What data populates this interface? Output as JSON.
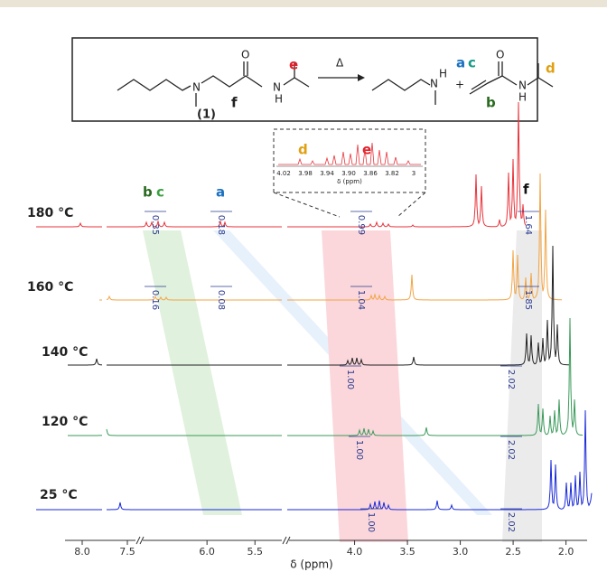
{
  "scheme": {
    "texts": [
      "e",
      "N",
      "N",
      "H",
      "O",
      "f",
      "(1)",
      "Δ",
      "N",
      "H",
      "+",
      "a",
      "c",
      "O",
      "N",
      "H",
      "d",
      "b"
    ]
  },
  "inset": {
    "labels": [
      "d",
      "e"
    ],
    "ticks": [
      "4.02",
      "3.98",
      "3.94",
      "3.90",
      "3.86",
      "3.82",
      "3"
    ],
    "axis_label": "δ (ppm)"
  },
  "peak_labels": [
    "b",
    "c",
    "a",
    "f"
  ],
  "spectra": [
    {
      "temperature": "180 °C",
      "integrals": [
        "0.35",
        "0.18",
        "0.99",
        "1.64"
      ]
    },
    {
      "temperature": "160 °C",
      "integrals": [
        "0.16",
        "0.08",
        "1.04",
        "1.85"
      ]
    },
    {
      "temperature": "140 °C",
      "integrals": [
        "1.00",
        "2.02"
      ]
    },
    {
      "temperature": "120 °C",
      "integrals": [
        "1.00",
        "2.02"
      ]
    },
    {
      "temperature": "25 °C",
      "integrals": [
        "1.00",
        "2.02"
      ]
    }
  ],
  "axis": {
    "label": "δ (ppm)",
    "segments": [
      {
        "xlim": [
          8.19,
          7.41
        ],
        "ticks": [
          {
            "value": 8,
            "label": "8.0"
          },
          7.5
        ]
      },
      {
        "xlim": [
          6.67,
          5.22
        ],
        "ticks": [
          {
            "value": 6,
            "label": "6.0"
          },
          5.5
        ]
      },
      {
        "xlim": [
          4.62,
          1.8
        ],
        "ticks": [
          {
            "value": 4,
            "label": "4.0"
          },
          3.5,
          {
            "value": 3,
            "label": "3.0"
          },
          2.5,
          {
            "value": 2,
            "label": "2.0"
          }
        ]
      }
    ]
  }
}
